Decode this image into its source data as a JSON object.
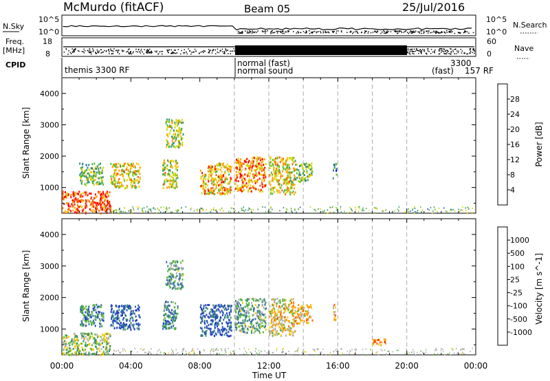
{
  "header": {
    "title": "McMurdo (fitACF)",
    "beam": "Beam 05",
    "date": "25/Jul/2016"
  },
  "panels": {
    "nsky": {
      "label": "N.Sky",
      "ticks": [
        "10^5",
        "10^0"
      ],
      "right_label": "N.Search",
      "right_ticks": [
        "10^5",
        "10^0"
      ]
    },
    "freq": {
      "label1": "Freq.",
      "label2": "[MHz]",
      "ticks": [
        "18",
        "8"
      ],
      "right_label": "Nave",
      "right_ticks": [
        "60",
        "0"
      ]
    },
    "cpid": {
      "label": "CPID",
      "program_texts": [
        "themis 3300 RF",
        "normal",
        "normal",
        "(fast)",
        "sound",
        "(fast)",
        "3300",
        "157 RF"
      ]
    }
  },
  "axes": {
    "ylabel": "Slant Range [km]",
    "xlabel": "Time UT",
    "x_ticks": [
      "00:00",
      "04:00",
      "08:00",
      "12:00",
      "16:00",
      "20:00",
      "00:00"
    ],
    "y_ticks": [
      "4000",
      "3000",
      "2000",
      "1000"
    ]
  },
  "colorbars": {
    "power": {
      "label": "Power [dB]",
      "ticks": [
        "28",
        "24",
        "20",
        "16",
        "12",
        "8",
        "4"
      ],
      "colors": [
        "#0000ff",
        "#1e4fbf",
        "#2f8a8a",
        "#3a9a5a",
        "#55bb33",
        "#c8d800",
        "#f5c800",
        "#ff9a00",
        "#ff5a00",
        "#ff0000"
      ]
    },
    "velocity": {
      "label": "Velocity [m s^-1]",
      "ticks": [
        "1000",
        "500",
        "100",
        "25",
        "-25",
        "-100",
        "-500",
        "-1000"
      ],
      "colors": [
        "#1f3fbf",
        "#2f6aa8",
        "#3a8f6a",
        "#55bb33",
        "#b0b0b0",
        "#f5c800",
        "#ff9a00",
        "#ff5a00",
        "#ff0000"
      ]
    }
  },
  "chart_data": [
    {
      "type": "heatmap",
      "title": "Power",
      "xlabel": "Time UT",
      "ylabel": "Slant Range [km]",
      "xlim": [
        0,
        24
      ],
      "ylim": [
        180,
        4500
      ],
      "colorbar_label": "Power [dB]",
      "colorbar_range": [
        0,
        32
      ],
      "dashed_hours": [
        10,
        12,
        14,
        16,
        18,
        20
      ],
      "blobs": [
        {
          "t": [
            0.0,
            2.8
          ],
          "r": [
            200,
            900
          ],
          "value": 28
        },
        {
          "t": [
            1.0,
            2.4
          ],
          "r": [
            1100,
            1800
          ],
          "value": 14
        },
        {
          "t": [
            2.8,
            4.5
          ],
          "r": [
            1000,
            1800
          ],
          "value": 20
        },
        {
          "t": [
            5.8,
            6.7
          ],
          "r": [
            1000,
            1900
          ],
          "value": 18
        },
        {
          "t": [
            6.0,
            7.0
          ],
          "r": [
            2300,
            3200
          ],
          "value": 16
        },
        {
          "t": [
            8.0,
            9.8
          ],
          "r": [
            800,
            1800
          ],
          "value": 22
        },
        {
          "t": [
            10.0,
            11.8
          ],
          "r": [
            900,
            2000
          ],
          "value": 24
        },
        {
          "t": [
            12.0,
            13.5
          ],
          "r": [
            800,
            2000
          ],
          "value": 20
        },
        {
          "t": [
            13.5,
            14.5
          ],
          "r": [
            1200,
            1800
          ],
          "value": 14
        },
        {
          "t": [
            15.7,
            15.9
          ],
          "r": [
            1300,
            1800
          ],
          "value": 10
        }
      ]
    },
    {
      "type": "heatmap",
      "title": "Velocity",
      "xlabel": "Time UT",
      "ylabel": "Slant Range [km]",
      "xlim": [
        0,
        24
      ],
      "ylim": [
        180,
        4500
      ],
      "colorbar_label": "Velocity [m s^-1]",
      "colorbar_range": [
        -1000,
        1000
      ],
      "dashed_hours": [
        10,
        12,
        14,
        16,
        18,
        20
      ],
      "blobs": [
        {
          "t": [
            0.0,
            2.8
          ],
          "r": [
            200,
            900
          ],
          "value": 100
        },
        {
          "t": [
            1.0,
            2.4
          ],
          "r": [
            1100,
            1800
          ],
          "value": 500
        },
        {
          "t": [
            2.8,
            4.5
          ],
          "r": [
            1000,
            1800
          ],
          "value": 800
        },
        {
          "t": [
            5.8,
            6.7
          ],
          "r": [
            1000,
            1900
          ],
          "value": 500
        },
        {
          "t": [
            6.0,
            7.0
          ],
          "r": [
            2300,
            3200
          ],
          "value": 300
        },
        {
          "t": [
            8.0,
            9.8
          ],
          "r": [
            800,
            1800
          ],
          "value": 800
        },
        {
          "t": [
            10.0,
            11.8
          ],
          "r": [
            900,
            2000
          ],
          "value": 300
        },
        {
          "t": [
            12.0,
            13.5
          ],
          "r": [
            800,
            2000
          ],
          "value": -200
        },
        {
          "t": [
            13.5,
            14.5
          ],
          "r": [
            1200,
            1800
          ],
          "value": -300
        },
        {
          "t": [
            15.7,
            15.9
          ],
          "r": [
            1300,
            1800
          ],
          "value": -400
        },
        {
          "t": [
            18.0,
            18.8
          ],
          "r": [
            500,
            700
          ],
          "value": -500
        }
      ]
    }
  ]
}
